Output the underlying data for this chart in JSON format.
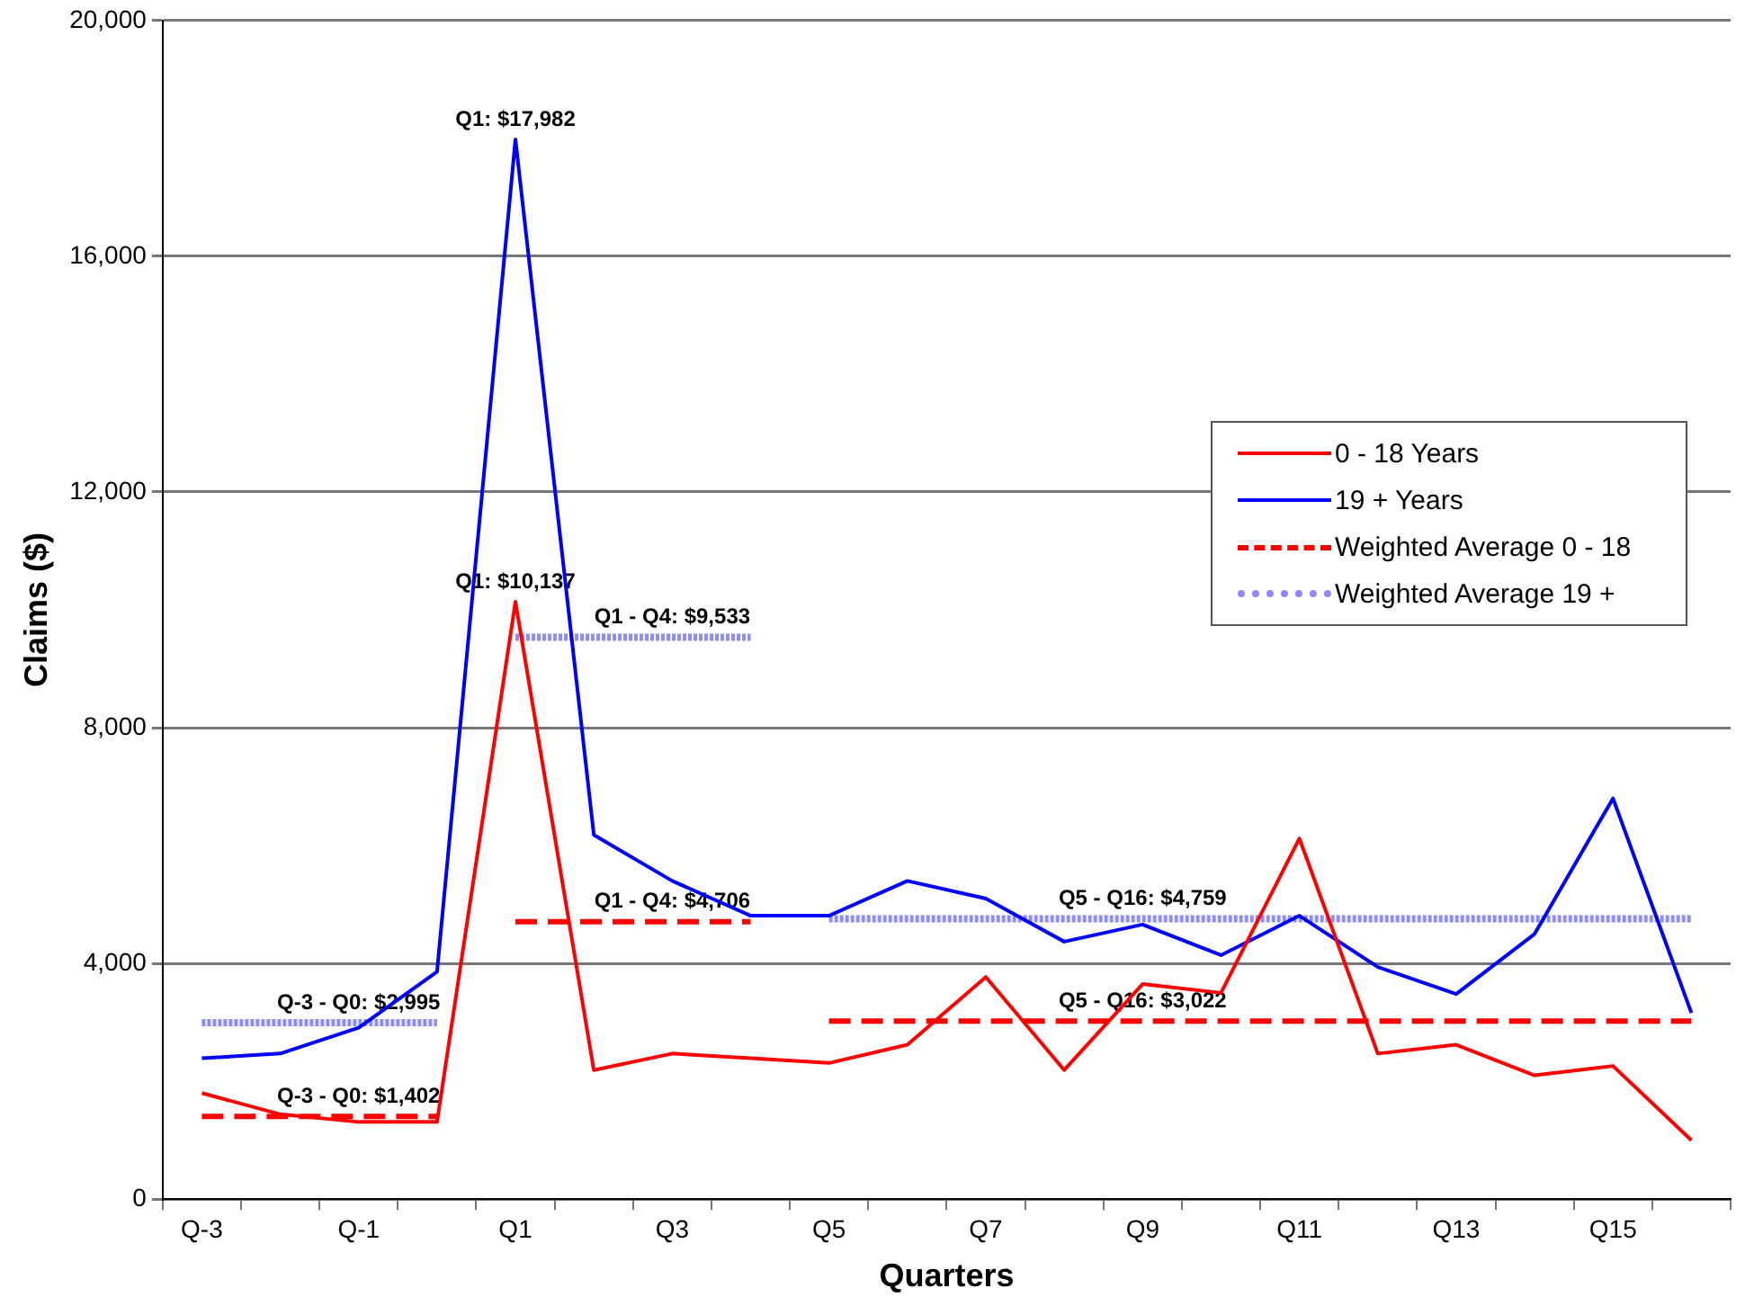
{
  "chart_data": {
    "type": "line",
    "xlabel": "Quarters",
    "ylabel": "Claims ($)",
    "categories": [
      "Q-3",
      null,
      "Q-1",
      null,
      "Q1",
      null,
      "Q3",
      null,
      "Q5",
      null,
      "Q7",
      null,
      "Q9",
      null,
      "Q11",
      null,
      "Q13",
      null,
      "Q15",
      null
    ],
    "series": [
      {
        "name": "0 - 18 Years",
        "color": "#ff0000",
        "line_style": "solid",
        "values": [
          1800,
          1440,
          1310,
          1310,
          10137,
          2190,
          2470,
          2390,
          2310,
          2620,
          3770,
          2190,
          3650,
          3500,
          6120,
          2470,
          2620,
          2100,
          2260,
          1000
        ]
      },
      {
        "name": "19 + Years",
        "color": "#0000ff",
        "line_style": "solid",
        "values": [
          2390,
          2470,
          2910,
          3860,
          17982,
          6180,
          5400,
          4810,
          4810,
          5400,
          5100,
          4370,
          4660,
          4140,
          4810,
          3940,
          3480,
          4500,
          6800,
          3160
        ]
      },
      {
        "name": "Weighted Average 0 - 18",
        "color": "#ff0000",
        "line_style": "dashed",
        "values": [
          1402,
          1402,
          1402,
          1402,
          null,
          null,
          null,
          null,
          null,
          null,
          null,
          null,
          null,
          null,
          null,
          null,
          null,
          null,
          null,
          null
        ]
      },
      {
        "color": "#ff0000",
        "line_style": "dashed",
        "values": [
          null,
          null,
          null,
          null,
          4706,
          4706,
          4706,
          4706,
          null,
          null,
          null,
          null,
          null,
          null,
          null,
          null,
          null,
          null,
          null,
          null
        ]
      },
      {
        "color": "#ff0000",
        "line_style": "dashed",
        "values": [
          null,
          null,
          null,
          null,
          null,
          null,
          null,
          null,
          3022,
          3022,
          3022,
          3022,
          3022,
          3022,
          3022,
          3022,
          3022,
          3022,
          3022,
          3022
        ]
      },
      {
        "name": "Weighted Average 19 +",
        "color": "#8c8cff",
        "line_style": "dotted",
        "values": [
          2995,
          2995,
          2995,
          2995,
          null,
          null,
          null,
          null,
          null,
          null,
          null,
          null,
          null,
          null,
          null,
          null,
          null,
          null,
          null,
          null
        ]
      },
      {
        "color": "#8c8cff",
        "line_style": "dotted",
        "values": [
          null,
          null,
          null,
          null,
          9533,
          9533,
          9533,
          9533,
          null,
          null,
          null,
          null,
          null,
          null,
          null,
          null,
          null,
          null,
          null,
          null
        ]
      },
      {
        "color": "#8c8cff",
        "line_style": "dotted",
        "values": [
          null,
          null,
          null,
          null,
          null,
          null,
          null,
          null,
          4759,
          4759,
          4759,
          4759,
          4759,
          4759,
          4759,
          4759,
          4759,
          4759,
          4759,
          4759
        ]
      }
    ],
    "ylim": [
      0,
      20000
    ],
    "yticks": [
      {
        "value": 0,
        "label": "0"
      },
      {
        "value": 4000,
        "label": "4,000"
      },
      {
        "value": 8000,
        "label": "8,000"
      },
      {
        "value": 12000,
        "label": "12,000"
      },
      {
        "value": 16000,
        "label": "16,000"
      },
      {
        "value": 20000,
        "label": "20,000"
      }
    ],
    "grid": "y",
    "legend": "right",
    "marker": "none",
    "annotations": [
      {
        "text": "Q1: $17,982",
        "x": "Q1",
        "y": 17982
      },
      {
        "text": "Q1: $10,137",
        "x": "Q1",
        "y": 10137
      },
      {
        "text": "Q1 - Q4: $9,533",
        "x": "Q3",
        "y": 9533
      },
      {
        "text": "Q1 - Q4: $4,706",
        "x": "Q3",
        "y": 4706
      },
      {
        "text": "Q-3 - Q0: $2,995",
        "x": "Q-1",
        "y": 2995
      },
      {
        "text": "Q-3 - Q0: $1,402",
        "x": "Q-1",
        "y": 1402
      },
      {
        "text": "Q5 - Q16: $4,759",
        "x": "Q9",
        "y": 4759
      },
      {
        "text": "Q5 - Q16: $3,022",
        "x": "Q9",
        "y": 3022
      }
    ]
  }
}
